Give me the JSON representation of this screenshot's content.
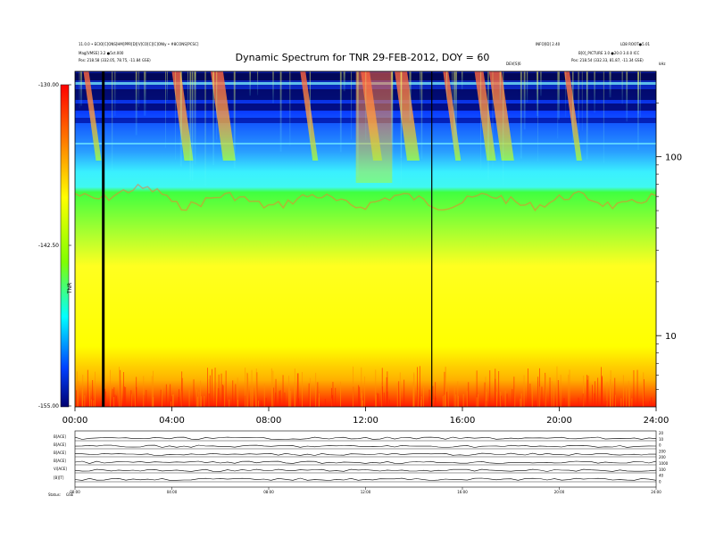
{
  "header": {
    "left_line1": "11.0.0 • ECIO[C]ONS[HM]PPR[D][V]CO[C][C]ONly • #8CONS[PCSC]",
    "left_line2": "Mag[VMSS] 3.2 ●5ct.000",
    "left_line3": "Pos:   218.58 (332.05, 78.75, -11.84 GSE)",
    "right_line1a": "INFO[ID] 2.40",
    "right_line1b": "LD8 ROOT●5.01",
    "right_line2": "B[0]_PICTURE 3.0 ●20.0 3.0.0 ICC",
    "right_line3": "Pos:   218.54 (332.33, 81.87, -11.34 GSE)",
    "midline": "DEV[S]6",
    "corner_label": "kHz"
  },
  "chart_data": {
    "type": "heatmap",
    "title": "Dynamic Spectrum for TNR 29-FEB-2012, DOY = 60",
    "x_ticks": [
      "00:00",
      "04:00",
      "08:00",
      "12:00",
      "16:00",
      "20:00",
      "24:00"
    ],
    "xlim": [
      0,
      24
    ],
    "y_scale": "log",
    "y_ticks": [
      {
        "value": 100,
        "label": "100"
      },
      {
        "value": 10,
        "label": "10"
      }
    ],
    "ylim_khz": [
      4,
      300
    ],
    "colorbar": {
      "label": "TNR",
      "ticks": [
        "-130.00",
        "-142.50",
        "-155.00"
      ],
      "range": [
        -155,
        -130
      ],
      "colors": [
        "#000070",
        "#0000ff",
        "#00ffff",
        "#00ff00",
        "#ffff00",
        "#ff8000",
        "#ff0000"
      ]
    },
    "data_gaps_hours": [
      1.15,
      14.75
    ],
    "features": {
      "quiet_boundary_khz_note": "",
      "bursts_start_hours": [
        0.35,
        4.0,
        5.6,
        9.3,
        11.8,
        13.2,
        15.2,
        16.5,
        17.1,
        20.2
      ]
    }
  },
  "lower_panel": {
    "row_labels": [
      "B[ACE]",
      "B[ACE]",
      "B[ACE]",
      "B[ACE]",
      "Vi[ACE]",
      "[B][T]",
      "Status"
    ],
    "right_labels": [
      "20",
      "10",
      "0",
      "200",
      "200",
      "1000",
      "100",
      "40",
      "0"
    ],
    "x_ticks": [
      "00:00",
      "04:00",
      "08:00",
      "12:00",
      "16:00",
      "20:00",
      "24:00"
    ],
    "footer_left": "Status:",
    "footer_mid": "GSE"
  }
}
